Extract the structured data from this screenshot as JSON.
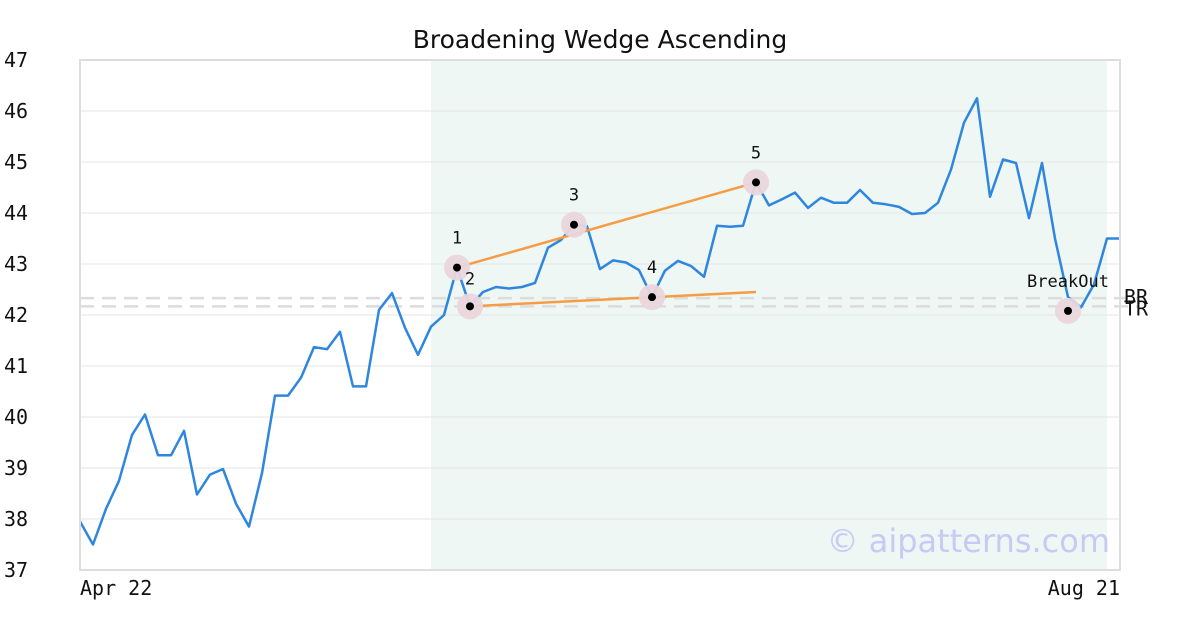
{
  "chart_data": {
    "type": "line",
    "title": "Broadening Wedge Ascending",
    "xlabel": "",
    "ylabel": "",
    "ylim": [
      37,
      47
    ],
    "yticks": [
      37,
      38,
      39,
      40,
      41,
      42,
      43,
      44,
      45,
      46,
      47
    ],
    "x_tick_labels": [
      {
        "index": 0,
        "label": "Apr 22"
      },
      {
        "index": 80,
        "label": "Aug 21"
      }
    ],
    "grid": "horizontal",
    "series": [
      {
        "color": "#2e86de",
        "values": [
          37.95,
          37.5,
          38.2,
          38.75,
          39.65,
          40.05,
          39.25,
          39.25,
          39.73,
          38.48,
          38.87,
          38.98,
          38.3,
          37.85,
          38.9,
          40.42,
          40.42,
          40.77,
          41.37,
          41.33,
          41.67,
          40.6,
          40.6,
          42.1,
          42.43,
          41.75,
          41.22,
          41.77,
          42.0,
          42.93,
          42.17,
          42.45,
          42.55,
          42.52,
          42.55,
          42.63,
          43.32,
          43.47,
          43.77,
          43.74,
          42.9,
          43.07,
          43.03,
          42.88,
          42.35,
          42.87,
          43.06,
          42.96,
          42.75,
          43.75,
          43.73,
          43.75,
          44.6,
          44.15,
          44.27,
          44.4,
          44.1,
          44.3,
          44.2,
          44.2,
          44.45,
          44.2,
          44.17,
          44.12,
          43.98,
          44.0,
          44.2,
          44.85,
          45.77,
          46.25,
          44.32,
          45.05,
          44.98,
          43.9,
          44.98,
          43.5,
          42.35,
          42.15,
          42.6,
          43.5,
          43.5
        ]
      }
    ],
    "pattern_region": {
      "start_index": 27,
      "end_index": 79,
      "color": "#eef7f3"
    },
    "trend_lines": [
      {
        "from": [
          29,
          42.93
        ],
        "to": [
          52,
          44.6
        ],
        "color": "#f59c45"
      },
      {
        "from": [
          30,
          42.17
        ],
        "to": [
          52,
          42.45
        ],
        "color": "#f59c45"
      }
    ],
    "points": [
      {
        "label": "1",
        "index": 29,
        "value": 42.93
      },
      {
        "label": "2",
        "index": 30,
        "value": 42.17
      },
      {
        "label": "3",
        "index": 38,
        "value": 43.77
      },
      {
        "label": "4",
        "index": 44,
        "value": 42.35
      },
      {
        "label": "5",
        "index": 52,
        "value": 44.6
      },
      {
        "label": "BreakOut",
        "index": 76,
        "value": 42.08
      }
    ],
    "reference_lines": [
      {
        "label": "BR",
        "value": 42.33
      },
      {
        "label": "TR",
        "value": 42.17
      }
    ],
    "watermark": "© aipatterns.com"
  },
  "colors": {
    "line": "#2e86de",
    "trend": "#f59c45",
    "region": "#eef7f3",
    "marker_halo": "#e9d6dc",
    "ref_line": "#dcdcdc",
    "grid": "#e6e6e6",
    "frame": "#dddddd"
  }
}
